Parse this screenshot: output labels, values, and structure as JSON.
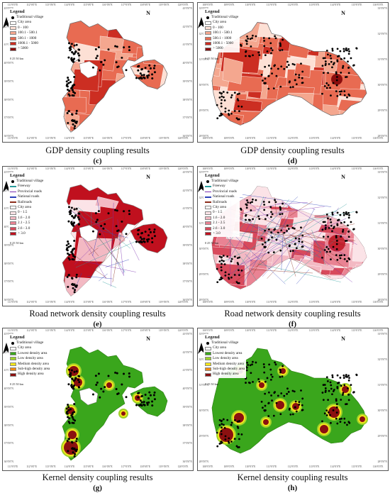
{
  "panels": [
    {
      "id": "c",
      "caption": "GDP density coupling results",
      "letter": "(c)",
      "legend_title": "Legend",
      "legend": [
        {
          "type": "dot",
          "label": "Traditional village"
        },
        {
          "type": "box",
          "color": "#ffffff",
          "label": "City area"
        },
        {
          "type": "box",
          "color": "#fde0d5",
          "label": "0 - 100"
        },
        {
          "type": "box",
          "color": "#f4a78f",
          "label": "100.1 - 500.1"
        },
        {
          "type": "box",
          "color": "#e86b52",
          "label": "500.1 - 1000"
        },
        {
          "type": "box",
          "color": "#cc2e22",
          "label": "1000.1 - 5000"
        },
        {
          "type": "box",
          "color": "#8b0d0d",
          "label": "> 5000"
        }
      ],
      "north": "N",
      "scale": "0  25 50 km",
      "top_ticks": [
        "111°0'0\"E",
        "112°0'0\"E",
        "113°0'0\"E",
        "114°0'0\"E",
        "115°0'0\"E",
        "116°0'0\"E",
        "117°0'0\"E",
        "118°0'0\"E",
        "119°0'0\"E",
        "120°0'0\"E"
      ],
      "side_ticks": [
        "43°0'0\"N",
        "42°0'0\"N",
        "41°0'0\"N",
        "40°0'0\"N",
        "39°0'0\"N",
        "38°0'0\"N",
        "37°0'0\"N",
        "36°0'0\"N"
      ]
    },
    {
      "id": "d",
      "caption": "GDP density coupling results",
      "letter": "(d)",
      "legend_title": "Legend",
      "legend": [
        {
          "type": "dot",
          "label": "Traditional village"
        },
        {
          "type": "box",
          "color": "#ffffff",
          "label": "City area"
        },
        {
          "type": "box",
          "color": "#fde0d5",
          "label": "0 - 100"
        },
        {
          "type": "box",
          "color": "#f4a78f",
          "label": "100.1 - 500.1"
        },
        {
          "type": "box",
          "color": "#e86b52",
          "label": "500.1 - 1000"
        },
        {
          "type": "box",
          "color": "#cc2e22",
          "label": "1000.1 - 5000"
        },
        {
          "type": "box",
          "color": "#8b0d0d",
          "label": "> 5000"
        }
      ],
      "north": "N",
      "scale": "0  25 50 km",
      "top_ticks": [
        "108°0'0\"E",
        "109°0'0\"E",
        "110°0'0\"E",
        "111°0'0\"E",
        "112°0'0\"E",
        "113°0'0\"E",
        "114°0'0\"E",
        "115°0'0\"E",
        "116°0'0\"E"
      ],
      "side_ticks": [
        "33°0'0\"N",
        "32°0'0\"N",
        "31°0'0\"N",
        "30°0'0\"N",
        "29°0'0\"N",
        "28°0'0\"N"
      ]
    },
    {
      "id": "e",
      "caption": "Road network density coupling results",
      "letter": "(e)",
      "legend_title": "Legend",
      "legend": [
        {
          "type": "dot",
          "label": "Traditional village"
        },
        {
          "type": "line",
          "color": "#2a9c9c",
          "label": "Freeway"
        },
        {
          "type": "line",
          "color": "#7a2fb0",
          "label": "Provincial roads"
        },
        {
          "type": "line",
          "color": "#2a3fb8",
          "label": "National roads"
        },
        {
          "type": "line",
          "color": "#8b2b1a",
          "label": "Railroads"
        },
        {
          "type": "box",
          "color": "#ffffff",
          "label": "City area"
        },
        {
          "type": "box",
          "color": "#fbe3e7",
          "label": "0 - 1.5"
        },
        {
          "type": "box",
          "color": "#f3b9c3",
          "label": "1.6 - 2.0"
        },
        {
          "type": "box",
          "color": "#e98393",
          "label": "2.1 - 2.5"
        },
        {
          "type": "box",
          "color": "#d84a5c",
          "label": "2.6 - 3.0"
        },
        {
          "type": "box",
          "color": "#c0101e",
          "label": "> 3.0"
        }
      ],
      "north": "N",
      "scale": "0  25 50 km",
      "top_ticks": [
        "111°0'0\"E",
        "112°0'0\"E",
        "113°0'0\"E",
        "114°0'0\"E",
        "115°0'0\"E",
        "116°0'0\"E",
        "117°0'0\"E",
        "118°0'0\"E",
        "119°0'0\"E",
        "120°0'0\"E"
      ],
      "side_ticks": [
        "43°0'0\"N",
        "42°0'0\"N",
        "41°0'0\"N",
        "40°0'0\"N",
        "39°0'0\"N",
        "38°0'0\"N",
        "37°0'0\"N",
        "36°0'0\"N"
      ]
    },
    {
      "id": "f",
      "caption": "Road network density coupling results",
      "letter": "(f)",
      "legend_title": "Legend",
      "legend": [
        {
          "type": "dot",
          "label": "Traditional village"
        },
        {
          "type": "line",
          "color": "#2a9c9c",
          "label": "Freeway"
        },
        {
          "type": "line",
          "color": "#7a2fb0",
          "label": "Provincial roads"
        },
        {
          "type": "line",
          "color": "#2a3fb8",
          "label": "National roads"
        },
        {
          "type": "line",
          "color": "#8b2b1a",
          "label": "Railroads"
        },
        {
          "type": "box",
          "color": "#ffffff",
          "label": "City area"
        },
        {
          "type": "box",
          "color": "#fbe3e7",
          "label": "0 - 1.5"
        },
        {
          "type": "box",
          "color": "#f3b9c3",
          "label": "1.6 - 2.0"
        },
        {
          "type": "box",
          "color": "#e98393",
          "label": "2.1 - 2.5"
        },
        {
          "type": "box",
          "color": "#d84a5c",
          "label": "2.6 - 3.0"
        },
        {
          "type": "box",
          "color": "#c0101e",
          "label": "> 3.0"
        }
      ],
      "north": "N",
      "scale": "0  25 50 km",
      "top_ticks": [
        "108°0'0\"E",
        "109°0'0\"E",
        "110°0'0\"E",
        "111°0'0\"E",
        "112°0'0\"E",
        "113°0'0\"E",
        "114°0'0\"E",
        "115°0'0\"E",
        "116°0'0\"E"
      ],
      "side_ticks": [
        "33°0'0\"N",
        "32°0'0\"N",
        "31°0'0\"N",
        "30°0'0\"N",
        "29°0'0\"N",
        "28°0'0\"N"
      ]
    },
    {
      "id": "g",
      "caption": "Kernel density coupling results",
      "letter": "(g)",
      "legend_title": "Legend",
      "legend": [
        {
          "type": "dot",
          "label": "Traditional village"
        },
        {
          "type": "box",
          "color": "#ffffff",
          "label": "City area"
        },
        {
          "type": "box",
          "color": "#3aa61c",
          "label": "Lowest density area"
        },
        {
          "type": "box",
          "color": "#9fd12a",
          "label": "Low density area"
        },
        {
          "type": "box",
          "color": "#f2e61a",
          "label": "Medium density area"
        },
        {
          "type": "box",
          "color": "#f08a16",
          "label": "Sub-high density area"
        },
        {
          "type": "box",
          "color": "#8b1010",
          "label": "High density area"
        }
      ],
      "north": "N",
      "scale": "0  25 50 km",
      "top_ticks": [
        "111°0'0\"E",
        "112°0'0\"E",
        "113°0'0\"E",
        "114°0'0\"E",
        "115°0'0\"E",
        "116°0'0\"E",
        "117°0'0\"E",
        "118°0'0\"E",
        "119°0'0\"E",
        "120°0'0\"E"
      ],
      "side_ticks": [
        "43°0'0\"N",
        "42°0'0\"N",
        "41°0'0\"N",
        "40°0'0\"N",
        "39°0'0\"N",
        "38°0'0\"N",
        "37°0'0\"N",
        "36°0'0\"N"
      ]
    },
    {
      "id": "h",
      "caption": "Kernel density coupling results",
      "letter": "(h)",
      "legend_title": "Legend",
      "legend": [
        {
          "type": "dot",
          "label": "Traditional village"
        },
        {
          "type": "box",
          "color": "#ffffff",
          "label": "City area"
        },
        {
          "type": "box",
          "color": "#3aa61c",
          "label": "Lowest density area"
        },
        {
          "type": "box",
          "color": "#9fd12a",
          "label": "Low density area"
        },
        {
          "type": "box",
          "color": "#f2e61a",
          "label": "Medium density area"
        },
        {
          "type": "box",
          "color": "#f08a16",
          "label": "Sub-high density area"
        },
        {
          "type": "box",
          "color": "#8b1010",
          "label": "High density area"
        }
      ],
      "north": "N",
      "scale": "0  25 50 km",
      "top_ticks": [
        "108°0'0\"E",
        "109°0'0\"E",
        "110°0'0\"E",
        "111°0'0\"E",
        "112°0'0\"E",
        "113°0'0\"E",
        "114°0'0\"E",
        "115°0'0\"E",
        "116°0'0\"E"
      ],
      "side_ticks": [
        "33°0'0\"N",
        "32°0'0\"N",
        "31°0'0\"N",
        "30°0'0\"N",
        "29°0'0\"N",
        "28°0'0\"N"
      ]
    }
  ]
}
